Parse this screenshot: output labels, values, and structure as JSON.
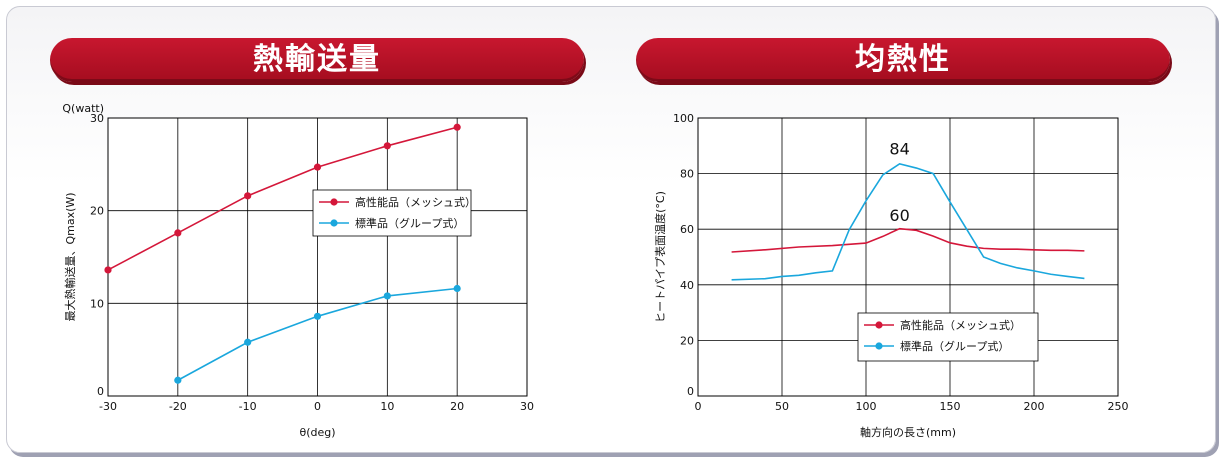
{
  "banners": {
    "left": "熱輸送量",
    "right": "均熱性"
  },
  "colors": {
    "red": "#d4173a",
    "blue": "#1aa7dd",
    "banner": "#b5122a"
  },
  "chart_data": [
    {
      "type": "line",
      "title": "",
      "ylabel_top": "Q(watt)",
      "ylabel": "最大熱輸送量、Qmax(W)",
      "xlabel": "θ(deg)",
      "xlim": [
        -30,
        30
      ],
      "ylim": [
        0,
        30
      ],
      "xticks": [
        -30,
        -20,
        -10,
        0,
        10,
        20,
        30
      ],
      "yticks": [
        0,
        10,
        20,
        30
      ],
      "grid": true,
      "legend": "center-right",
      "series": [
        {
          "name": "高性能品（メッシュ式）",
          "color": "#d4173a",
          "x": [
            -30,
            -20,
            -10,
            0,
            10,
            20
          ],
          "y": [
            13.6,
            17.6,
            21.6,
            24.7,
            27.0,
            29.0
          ]
        },
        {
          "name": "標準品（グループ式）",
          "color": "#1aa7dd",
          "x": [
            -20,
            -10,
            0,
            10,
            20
          ],
          "y": [
            1.7,
            5.8,
            8.6,
            10.8,
            11.6
          ]
        }
      ]
    },
    {
      "type": "line",
      "title": "",
      "ylabel": "ヒートパイプ表面温度(°C)",
      "xlabel": "軸方向の長さ(mm)",
      "xlim": [
        0,
        250
      ],
      "ylim": [
        0,
        100
      ],
      "xticks": [
        0,
        50,
        100,
        150,
        200,
        250
      ],
      "yticks": [
        0,
        20,
        40,
        60,
        80,
        100
      ],
      "grid": true,
      "legend": "bottom-right",
      "annotations": [
        {
          "text": "84",
          "x": 120,
          "y": 84
        },
        {
          "text": "60",
          "x": 120,
          "y": 60
        }
      ],
      "series": [
        {
          "name": "高性能品（メッシュ式）",
          "color": "#d4173a",
          "x": [
            20,
            40,
            60,
            80,
            100,
            110,
            120,
            130,
            140,
            150,
            160,
            170,
            180,
            190,
            200,
            210,
            220,
            230
          ],
          "y": [
            51.8,
            52.6,
            53.6,
            54.1,
            55.0,
            57.4,
            60.2,
            59.6,
            57.5,
            55.1,
            53.9,
            53.1,
            52.8,
            52.8,
            52.6,
            52.4,
            52.4,
            52.2
          ]
        },
        {
          "name": "標準品（グループ式）",
          "color": "#1aa7dd",
          "x": [
            20,
            40,
            50,
            60,
            70,
            80,
            90,
            100,
            110,
            120,
            130,
            140,
            150,
            160,
            170,
            180,
            190,
            200,
            210,
            220,
            230
          ],
          "y": [
            41.8,
            42.2,
            43.0,
            43.4,
            44.3,
            45.0,
            59.8,
            70.2,
            79.5,
            83.5,
            82.0,
            80.0,
            69.8,
            59.9,
            50.0,
            47.7,
            46.1,
            45.0,
            43.8,
            43.0,
            42.3
          ]
        }
      ]
    }
  ]
}
